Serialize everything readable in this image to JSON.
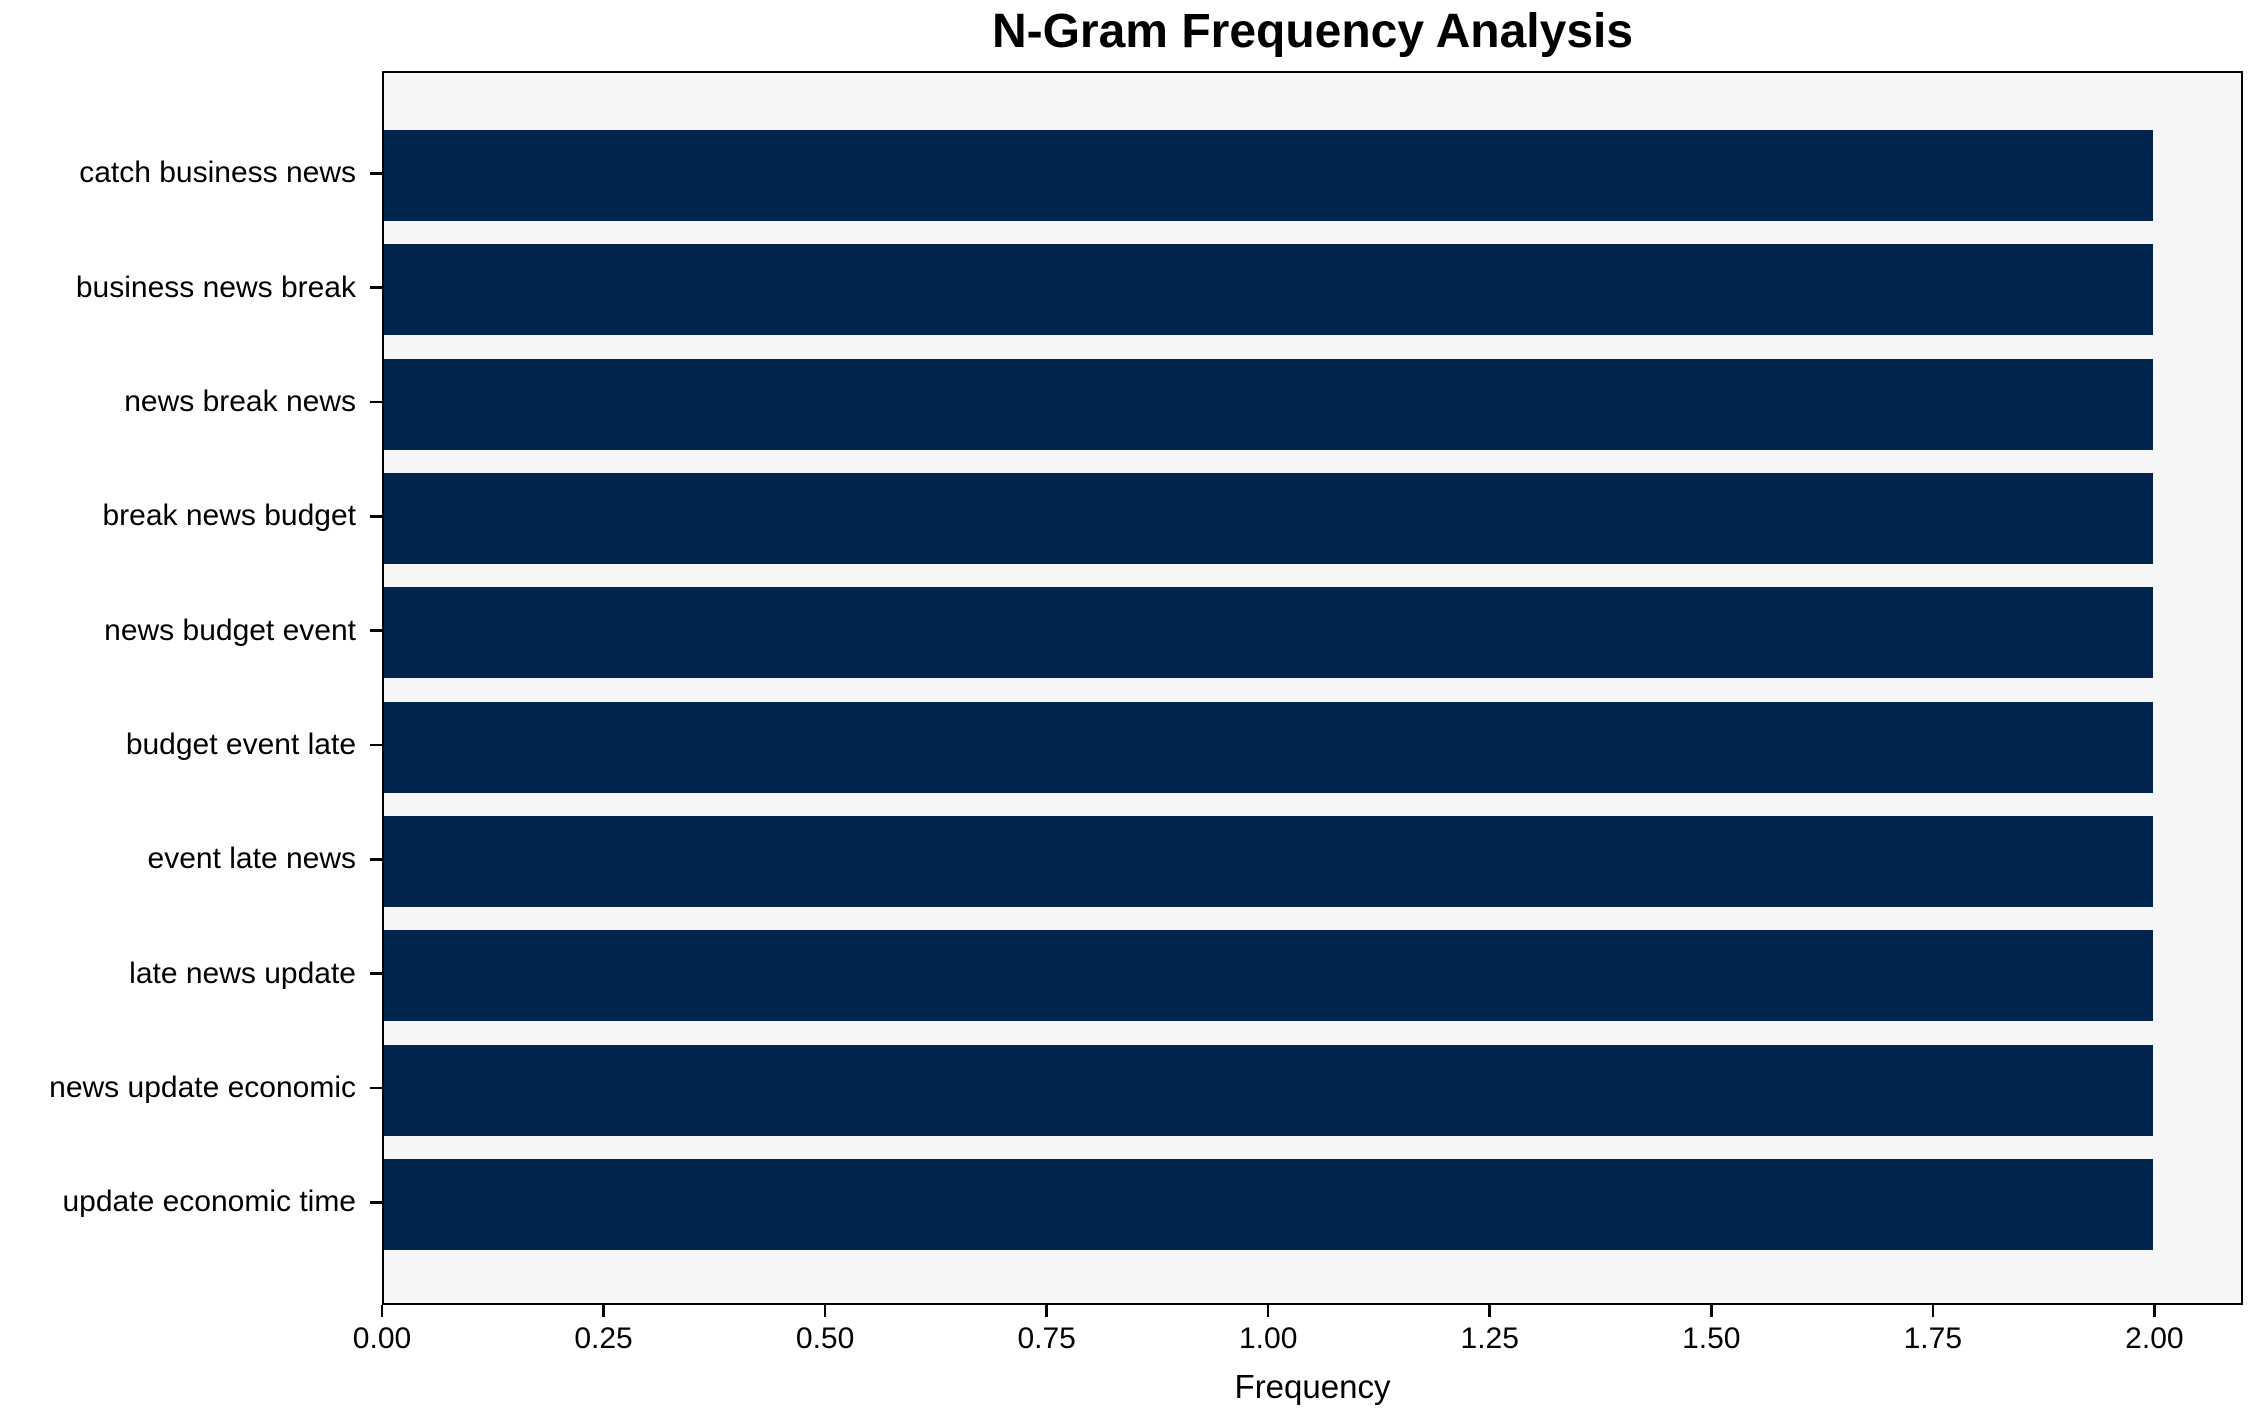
{
  "chart_data": {
    "type": "bar",
    "orientation": "horizontal",
    "title": "N-Gram Frequency Analysis",
    "xlabel": "Frequency",
    "ylabel": "",
    "categories": [
      "catch business news",
      "business news break",
      "news break news",
      "break news budget",
      "news budget event",
      "budget event late",
      "event late news",
      "late news update",
      "news update economic",
      "update economic time"
    ],
    "values": [
      2,
      2,
      2,
      2,
      2,
      2,
      2,
      2,
      2,
      2
    ],
    "xlim": [
      0,
      2.1
    ],
    "xticks": [
      0.0,
      0.25,
      0.5,
      0.75,
      1.0,
      1.25,
      1.5,
      1.75,
      2.0
    ],
    "xtick_labels": [
      "0.00",
      "0.25",
      "0.50",
      "0.75",
      "1.00",
      "1.25",
      "1.50",
      "1.75",
      "2.00"
    ],
    "grid": false,
    "legend": false,
    "colors": {
      "bar": "#02254e",
      "plot_background": "#f6f6f6",
      "figure_background": "#ffffff",
      "text": "#000000",
      "spine": "#000000"
    }
  }
}
